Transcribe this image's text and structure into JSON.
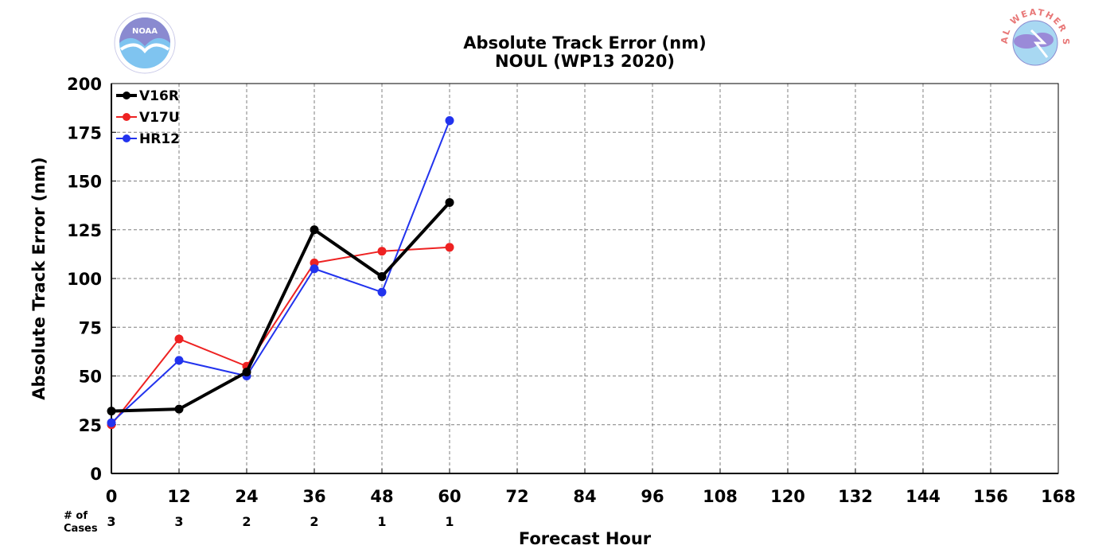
{
  "chart_data": {
    "type": "line",
    "title": "Absolute Track Error (nm)",
    "subtitle": "NOUL (WP13 2020)",
    "xlabel": "Forecast Hour",
    "ylabel": "Absolute Track Error (nm)",
    "xlim": [
      0,
      168
    ],
    "ylim": [
      0,
      200
    ],
    "x_ticks": [
      0,
      12,
      24,
      36,
      48,
      60,
      72,
      84,
      96,
      108,
      120,
      132,
      144,
      156,
      168
    ],
    "y_ticks": [
      0,
      25,
      50,
      75,
      100,
      125,
      150,
      175,
      200
    ],
    "grid": true,
    "legend_position": "top-left",
    "series": [
      {
        "name": "V16R",
        "color": "#000000",
        "x": [
          0,
          12,
          24,
          36,
          48,
          60
        ],
        "values": [
          32,
          33,
          52,
          125,
          101,
          139
        ]
      },
      {
        "name": "V17U",
        "color": "#ee2222",
        "x": [
          0,
          12,
          24,
          36,
          48,
          60
        ],
        "values": [
          25,
          69,
          55,
          108,
          114,
          116
        ]
      },
      {
        "name": "HR12",
        "color": "#2233ee",
        "x": [
          0,
          12,
          24,
          36,
          48,
          60
        ],
        "values": [
          26,
          58,
          50,
          105,
          93,
          181
        ]
      }
    ],
    "cases": {
      "label_line1": "# of",
      "label_line2": "Cases",
      "x": [
        0,
        12,
        24,
        36,
        48,
        60
      ],
      "values": [
        "3",
        "3",
        "2",
        "2",
        "1",
        "1"
      ]
    }
  },
  "logos": {
    "noaa": {
      "text": "NOAA",
      "ring_text": "NATIONAL OCEANIC AND ATMOSPHERIC ADMINISTRATION · U.S. DEPARTMENT OF COMMERCE"
    },
    "nws": {
      "ring_text": "NATIONAL WEATHER SERVICE"
    }
  }
}
